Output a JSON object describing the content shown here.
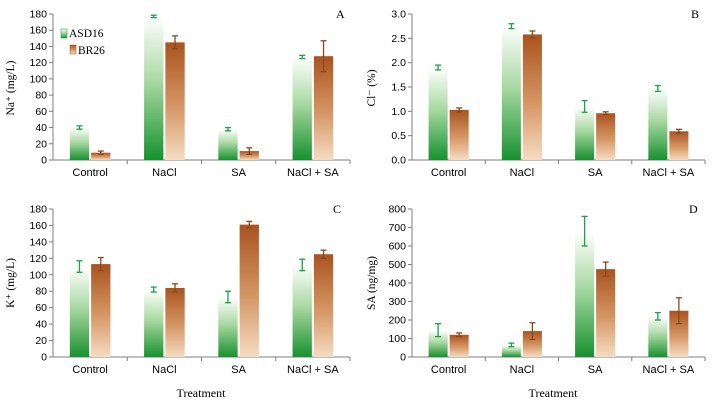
{
  "colors": {
    "ASD16": "#1f9a3a",
    "BR26": "#b5652b",
    "axis": "#7f7f7f"
  },
  "legend": {
    "ASD16": "ASD16",
    "BR26": "BR26"
  },
  "panel_labels": [
    "A",
    "B",
    "C",
    "D"
  ],
  "chart_data": [
    {
      "type": "bar",
      "panel": "A",
      "ylabel": "Na⁺ (mg/L)",
      "xlabel": "",
      "categories": [
        "Control",
        "NaCl",
        "SA",
        "NaCl + SA"
      ],
      "ylim": [
        0,
        180
      ],
      "yticks": [
        "0",
        "20",
        "40",
        "60",
        "80",
        "100",
        "120",
        "140",
        "160",
        "180"
      ],
      "series": [
        {
          "name": "ASD16",
          "values": [
            40,
            177,
            38,
            127
          ],
          "errors": [
            2,
            1.5,
            2,
            2
          ]
        },
        {
          "name": "BR26",
          "values": [
            9,
            145,
            11,
            128
          ],
          "errors": [
            2,
            8,
            4,
            19
          ]
        }
      ],
      "legend": "top-left",
      "grid": false
    },
    {
      "type": "bar",
      "panel": "B",
      "ylabel": "Cl⁻ (%)",
      "xlabel": "",
      "categories": [
        "Control",
        "NaCl",
        "SA",
        "NaCl + SA"
      ],
      "ylim": [
        0,
        3.0
      ],
      "yticks": [
        "0.0",
        "0.5",
        "1.0",
        "1.5",
        "2.0",
        "2.5",
        "3.0"
      ],
      "series": [
        {
          "name": "ASD16",
          "values": [
            1.9,
            2.75,
            1.1,
            1.47
          ],
          "errors": [
            0.05,
            0.05,
            0.12,
            0.06
          ]
        },
        {
          "name": "BR26",
          "values": [
            1.03,
            2.58,
            0.96,
            0.59
          ],
          "errors": [
            0.04,
            0.07,
            0.03,
            0.04
          ]
        }
      ],
      "grid": false
    },
    {
      "type": "bar",
      "panel": "C",
      "ylabel": "K⁺ (mg/L)",
      "xlabel": "Treatment",
      "categories": [
        "Control",
        "NaCl",
        "SA",
        "NaCl + SA"
      ],
      "ylim": [
        0,
        180
      ],
      "yticks": [
        "0",
        "20",
        "40",
        "60",
        "80",
        "100",
        "120",
        "140",
        "160",
        "180"
      ],
      "series": [
        {
          "name": "ASD16",
          "values": [
            110,
            82,
            73,
            112
          ],
          "errors": [
            7,
            3,
            7,
            7
          ]
        },
        {
          "name": "BR26",
          "values": [
            113,
            84,
            161,
            125
          ],
          "errors": [
            8,
            5,
            4,
            5
          ]
        }
      ],
      "grid": false
    },
    {
      "type": "bar",
      "panel": "D",
      "ylabel": "SA (ng/mg)",
      "xlabel": "Treatment",
      "categories": [
        "Control",
        "NaCl",
        "SA",
        "NaCl + SA"
      ],
      "ylim": [
        0,
        800
      ],
      "yticks": [
        "0",
        "100",
        "200",
        "300",
        "400",
        "500",
        "600",
        "700",
        "800"
      ],
      "series": [
        {
          "name": "ASD16",
          "values": [
            145,
            65,
            680,
            220
          ],
          "errors": [
            35,
            10,
            80,
            20
          ]
        },
        {
          "name": "BR26",
          "values": [
            120,
            140,
            475,
            250
          ],
          "errors": [
            10,
            45,
            38,
            70
          ]
        }
      ],
      "grid": false
    }
  ]
}
